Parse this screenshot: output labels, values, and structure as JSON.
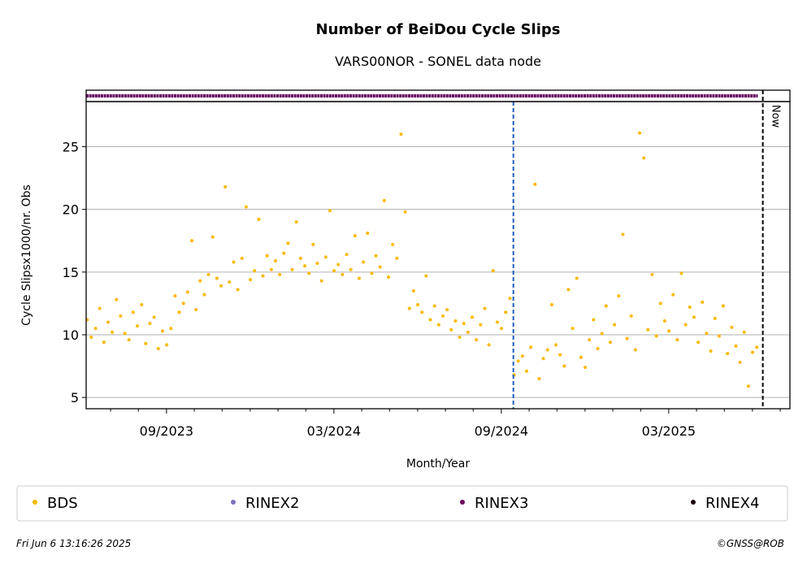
{
  "chart_data": {
    "type": "scatter",
    "title": "Number of BeiDou Cycle Slips",
    "subtitle": "VARS00NOR - SONEL data node",
    "x_label": "Month/Year",
    "y_label": "Cycle Slipsx1000/nr. Obs",
    "xlim": [
      2023.427,
      2025.529
    ],
    "ylim": [
      4.1,
      28.6
    ],
    "xticks": [
      {
        "value": 2023.667,
        "label": "09/2023"
      },
      {
        "value": 2024.167,
        "label": "03/2024"
      },
      {
        "value": 2024.667,
        "label": "09/2024"
      },
      {
        "value": 2025.167,
        "label": "03/2025"
      }
    ],
    "xminorticks": [
      2023.5,
      2023.583,
      2023.75,
      2023.833,
      2023.917,
      2024.0,
      2024.083,
      2024.25,
      2024.333,
      2024.417,
      2024.5,
      2024.583,
      2024.75,
      2024.833,
      2024.917,
      2025.0,
      2025.083,
      2025.25,
      2025.333,
      2025.417,
      2025.5
    ],
    "yticks": [
      5,
      10,
      15,
      20,
      25
    ],
    "grid": true,
    "series": [
      {
        "name": "BDS",
        "color": "#fbb900",
        "x": [
          2023.43,
          2023.4425,
          2023.455,
          2023.4675,
          2023.48,
          2023.4925,
          2023.505,
          2023.5175,
          2023.53,
          2023.5425,
          2023.555,
          2023.5675,
          2023.58,
          2023.5925,
          2023.605,
          2023.6175,
          2023.63,
          2023.6425,
          2023.655,
          2023.6675,
          2023.68,
          2023.6925,
          2023.705,
          2023.7175,
          2023.73,
          2023.7425,
          2023.755,
          2023.7675,
          2023.78,
          2023.7925,
          2023.805,
          2023.8175,
          2023.83,
          2023.8425,
          2023.855,
          2023.8675,
          2023.88,
          2023.8925,
          2023.905,
          2023.9175,
          2023.93,
          2023.9425,
          2023.955,
          2023.9675,
          2023.98,
          2023.9925,
          2024.005,
          2024.0175,
          2024.03,
          2024.0425,
          2024.055,
          2024.0675,
          2024.08,
          2024.0925,
          2024.105,
          2024.1175,
          2024.13,
          2024.1425,
          2024.155,
          2024.1675,
          2024.18,
          2024.1925,
          2024.205,
          2024.2175,
          2024.23,
          2024.2425,
          2024.255,
          2024.2675,
          2024.28,
          2024.2925,
          2024.305,
          2024.3175,
          2024.33,
          2024.3425,
          2024.355,
          2024.3675,
          2024.38,
          2024.3925,
          2024.405,
          2024.4175,
          2024.43,
          2024.4425,
          2024.455,
          2024.4675,
          2024.48,
          2024.4925,
          2024.505,
          2024.5175,
          2024.53,
          2024.5425,
          2024.555,
          2024.5675,
          2024.58,
          2024.5925,
          2024.605,
          2024.6175,
          2024.63,
          2024.6425,
          2024.655,
          2024.6675,
          2024.68,
          2024.6925,
          2024.705,
          2024.7175,
          2024.73,
          2024.7425,
          2024.755,
          2024.7675,
          2024.78,
          2024.7925,
          2024.805,
          2024.8175,
          2024.83,
          2024.8425,
          2024.855,
          2024.8675,
          2024.88,
          2024.8925,
          2024.905,
          2024.9175,
          2024.93,
          2024.9425,
          2024.955,
          2024.9675,
          2024.98,
          2024.9925,
          2025.005,
          2025.0175,
          2025.03,
          2025.0425,
          2025.055,
          2025.0675,
          2025.08,
          2025.0925,
          2025.105,
          2025.1175,
          2025.13,
          2025.1425,
          2025.155,
          2025.1675,
          2025.18,
          2025.1925,
          2025.205,
          2025.2175,
          2025.23,
          2025.2425,
          2025.255,
          2025.2675,
          2025.28,
          2025.2925,
          2025.305,
          2025.3175,
          2025.33,
          2025.3425,
          2025.355,
          2025.3675,
          2025.38,
          2025.3925,
          2025.405,
          2025.4175,
          2025.43
        ],
        "values": [
          11.2,
          9.8,
          10.5,
          12.1,
          9.4,
          11,
          10.2,
          12.8,
          11.5,
          10.1,
          9.6,
          11.8,
          10.7,
          12.4,
          9.3,
          10.9,
          11.4,
          8.9,
          10.3,
          9.2,
          10.5,
          13.1,
          11.8,
          12.5,
          13.4,
          17.5,
          12,
          14.3,
          13.2,
          14.8,
          17.8,
          14.5,
          13.9,
          21.8,
          14.2,
          15.8,
          13.6,
          16.1,
          20.2,
          14.4,
          15.1,
          19.2,
          14.7,
          16.3,
          15.2,
          15.9,
          14.8,
          16.5,
          17.3,
          15.2,
          19,
          16.1,
          15.5,
          14.9,
          17.2,
          15.7,
          14.3,
          16.2,
          19.9,
          15.1,
          15.6,
          14.8,
          16.4,
          15.2,
          17.9,
          14.5,
          15.8,
          18.1,
          14.9,
          16.3,
          15.4,
          20.7,
          14.6,
          17.2,
          16.1,
          26.0,
          19.8,
          12.1,
          13.5,
          12.4,
          11.8,
          14.7,
          11.2,
          12.3,
          10.8,
          11.5,
          12,
          10.4,
          11.1,
          9.8,
          10.9,
          10.2,
          11.4,
          9.6,
          10.8,
          12.1,
          9.2,
          15.1,
          11,
          10.5,
          11.8,
          12.9,
          6.8,
          7.9,
          8.3,
          7.1,
          9.0,
          22.0,
          6.5,
          8.1,
          8.8,
          12.4,
          9.2,
          8.4,
          7.5,
          13.6,
          10.5,
          14.5,
          8.2,
          7.4,
          9.6,
          11.2,
          8.9,
          10.1,
          12.3,
          9.4,
          10.8,
          13.1,
          18,
          9.7,
          11.5,
          8.8,
          26.1,
          24.1,
          10.4,
          14.8,
          9.9,
          12.5,
          11.1,
          10.3,
          13.2,
          9.6,
          14.9,
          10.8,
          12.2,
          11.4,
          9.4,
          12.6,
          10.1,
          8.7,
          11.3,
          9.9,
          12.3,
          8.5,
          10.6,
          9.1,
          7.8,
          10.2,
          5.9,
          8.6,
          9.0
        ]
      }
    ],
    "legend_entries": [
      {
        "name": "BDS",
        "color": "#fbb900"
      },
      {
        "name": "RINEX2",
        "color": "#7b6fb8"
      },
      {
        "name": "RINEX3",
        "color": "#6a0a5e"
      },
      {
        "name": "RINEX4",
        "color": "#1a0010"
      }
    ],
    "rinex3_span": [
      2023.427,
      2025.433
    ],
    "vlines": [
      {
        "x": 2024.703,
        "color": "#1f5fbf"
      },
      {
        "x": 2025.448,
        "color": "#000000",
        "label": "Now"
      }
    ],
    "legend": "bottom",
    "timestamp": "Fri Jun  6 13:16:26 2025",
    "credit": "©GNSS@ROB"
  }
}
